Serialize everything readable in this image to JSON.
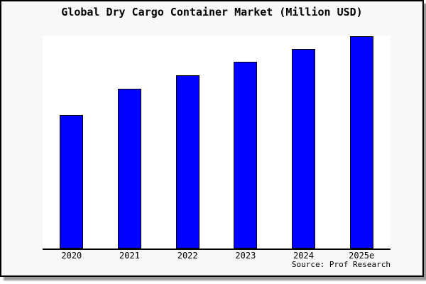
{
  "chart": {
    "title": "Global Dry Cargo Container Market (Million USD)",
    "source": "Source: Prof Research"
  },
  "colors": {
    "bar_fill": "#0000ff",
    "bar_border": "#000000",
    "frame_background": "#f8f8f8",
    "plot_background": "#ffffff",
    "frame_border": "#000000",
    "axis_line": "#000000",
    "shadow": "#9a9a9a",
    "text": "#000000"
  },
  "chart_data": {
    "type": "bar",
    "title": "Global Dry Cargo Container Market (Million USD)",
    "categories": [
      "2020",
      "2021",
      "2022",
      "2023",
      "2024",
      "2025e"
    ],
    "values": [
      62.9,
      75.3,
      81.6,
      88.0,
      94.0,
      100.0
    ],
    "values_note": "y-axis has no tick labels; values are relative units estimated from bar heights, normalized so 2025e = 100",
    "xlabel": "",
    "ylabel": "",
    "ylim": [
      0,
      100.5
    ],
    "grid": false,
    "legend": false,
    "annotations": [
      "Source: Prof Research"
    ]
  }
}
